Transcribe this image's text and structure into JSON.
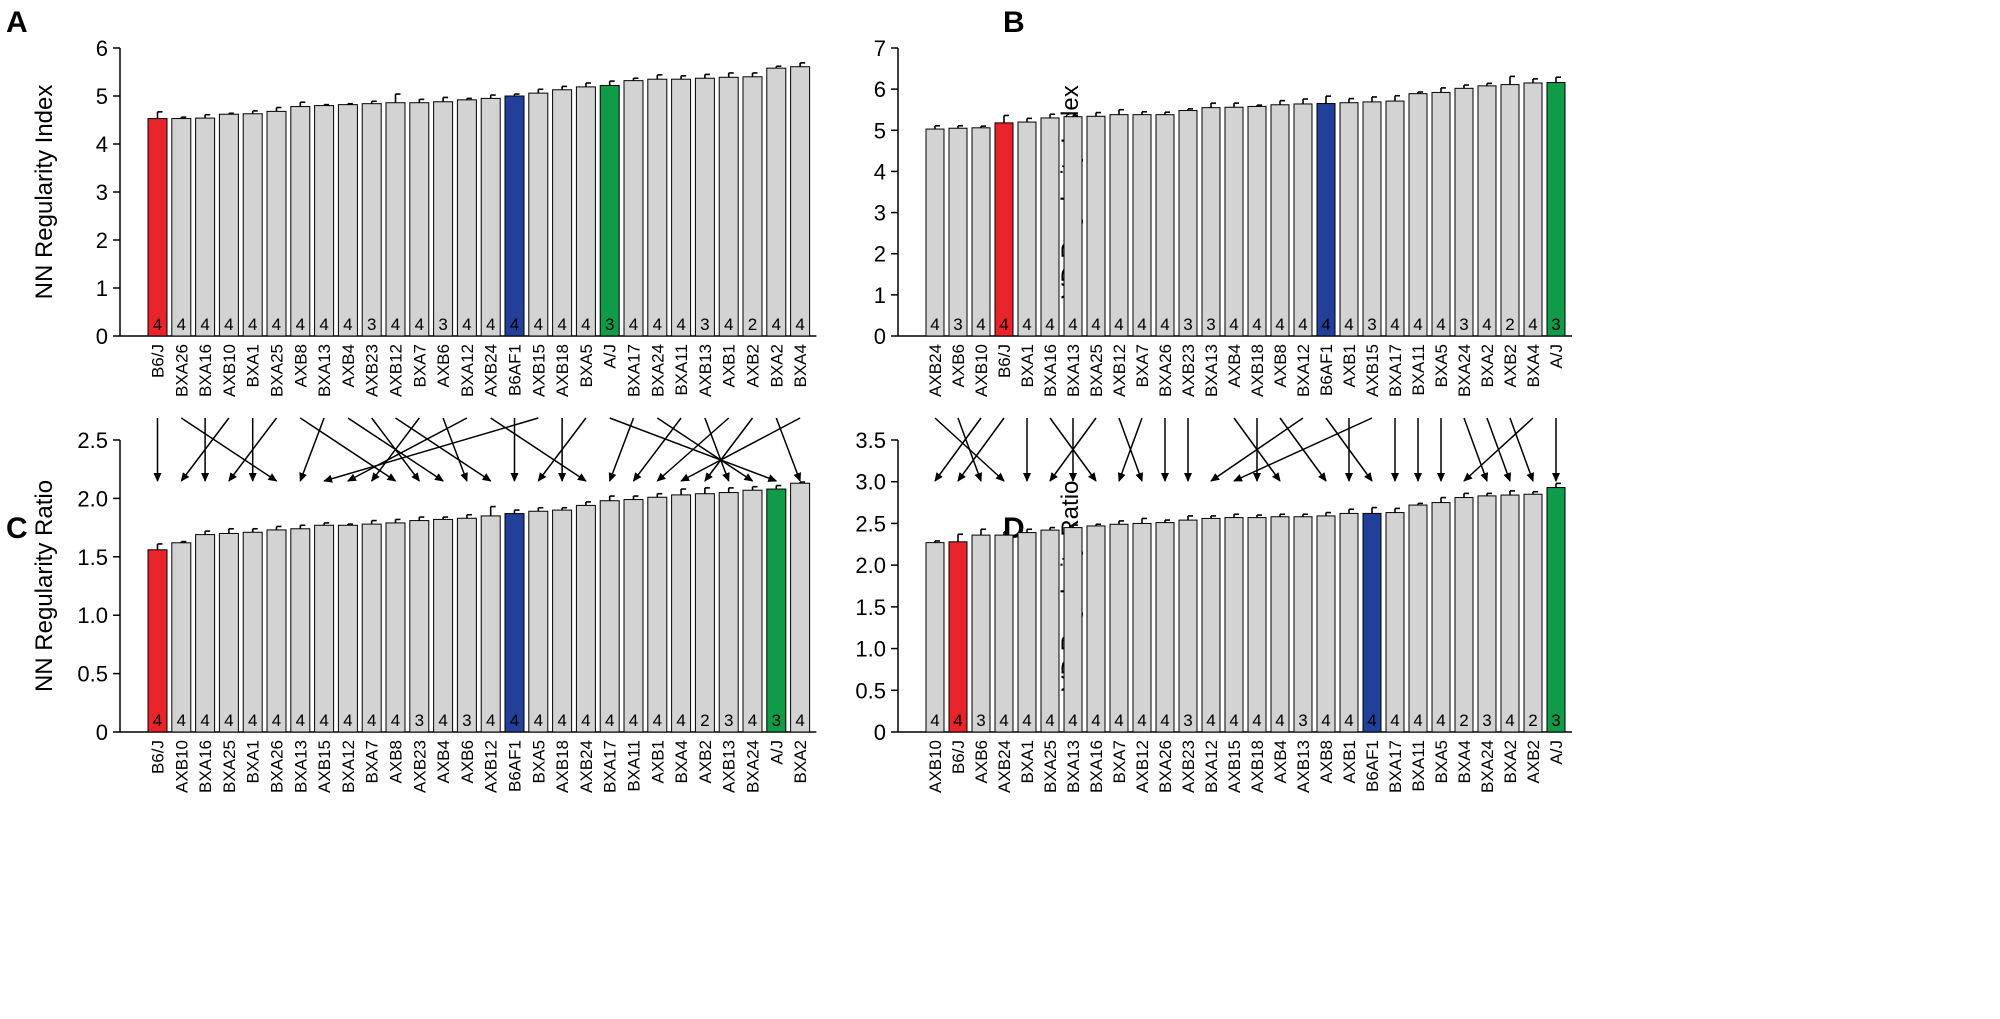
{
  "colors": {
    "default": "#d3d3d3",
    "B6/J": "#e8232a",
    "B6AF1": "#22409a",
    "A/J": "#0f9b47"
  },
  "chart_data": [
    {
      "panel": "A",
      "type": "bar",
      "ylabel": "NN Regularity Index",
      "ylim": [
        0,
        6
      ],
      "yticks": [
        0,
        1,
        2,
        3,
        4,
        5,
        6
      ],
      "categories": [
        "B6/J",
        "BXA26",
        "BXA16",
        "AXB10",
        "BXA1",
        "BXA25",
        "AXB8",
        "BXA13",
        "AXB4",
        "AXB23",
        "AXB12",
        "BXA7",
        "AXB6",
        "BXA12",
        "AXB24",
        "B6AF1",
        "AXB15",
        "AXB18",
        "BXA5",
        "A/J",
        "BXA17",
        "BXA24",
        "BXA11",
        "AXB13",
        "AXB1",
        "AXB2",
        "BXA2",
        "BXA4"
      ],
      "values": [
        4.53,
        4.53,
        4.54,
        4.62,
        4.63,
        4.68,
        4.78,
        4.8,
        4.82,
        4.84,
        4.86,
        4.86,
        4.88,
        4.92,
        4.95,
        5.0,
        5.06,
        5.13,
        5.19,
        5.22,
        5.32,
        5.35,
        5.35,
        5.37,
        5.39,
        5.4,
        5.58,
        5.61
      ],
      "errors": [
        0.14,
        0.03,
        0.07,
        0.02,
        0.06,
        0.08,
        0.09,
        0.02,
        0.02,
        0.05,
        0.18,
        0.07,
        0.09,
        0.03,
        0.07,
        0.04,
        0.08,
        0.07,
        0.08,
        0.09,
        0.05,
        0.09,
        0.07,
        0.08,
        0.09,
        0.08,
        0.04,
        0.08
      ],
      "n": [
        4,
        4,
        4,
        4,
        4,
        4,
        4,
        4,
        4,
        3,
        4,
        4,
        3,
        4,
        4,
        4,
        4,
        4,
        4,
        3,
        4,
        4,
        4,
        3,
        4,
        2,
        4,
        4
      ]
    },
    {
      "panel": "B",
      "type": "bar",
      "ylabel": "VD Regularity Index",
      "ylim": [
        0,
        7
      ],
      "yticks": [
        0,
        1,
        2,
        3,
        4,
        5,
        6,
        7
      ],
      "categories": [
        "AXB24",
        "AXB6",
        "AXB10",
        "B6/J",
        "BXA1",
        "BXA16",
        "BXA13",
        "BXA25",
        "AXB12",
        "BXA7",
        "BXA26",
        "AXB23",
        "BXA13",
        "AXB4",
        "AXB18",
        "AXB8",
        "BXA12",
        "B6AF1",
        "AXB1",
        "AXB15",
        "BXA17",
        "BXA11",
        "BXA5",
        "BXA24",
        "BXA2",
        "AXB2",
        "BXA4",
        "A/J"
      ],
      "values": [
        5.03,
        5.05,
        5.06,
        5.18,
        5.2,
        5.3,
        5.33,
        5.34,
        5.38,
        5.38,
        5.38,
        5.48,
        5.55,
        5.56,
        5.58,
        5.62,
        5.64,
        5.65,
        5.67,
        5.69,
        5.71,
        5.89,
        5.92,
        6.02,
        6.08,
        6.11,
        6.15,
        6.16
      ],
      "errors": [
        0.08,
        0.06,
        0.04,
        0.18,
        0.09,
        0.09,
        0.03,
        0.09,
        0.12,
        0.07,
        0.06,
        0.04,
        0.11,
        0.1,
        0.03,
        0.1,
        0.12,
        0.18,
        0.1,
        0.12,
        0.13,
        0.04,
        0.11,
        0.08,
        0.06,
        0.2,
        0.1,
        0.13
      ],
      "n": [
        4,
        3,
        4,
        4,
        4,
        4,
        4,
        4,
        4,
        4,
        4,
        3,
        3,
        4,
        4,
        4,
        4,
        4,
        4,
        3,
        4,
        4,
        4,
        3,
        4,
        2,
        4,
        3
      ]
    },
    {
      "panel": "C",
      "type": "bar",
      "ylabel": "NN Regularity Ratio",
      "ylim": [
        0,
        2.5
      ],
      "yticks": [
        0,
        0.5,
        1.0,
        1.5,
        2.0,
        2.5
      ],
      "ytick_labels": [
        "0",
        "0.5",
        "1.0",
        "1.5",
        "2.0",
        "2.5"
      ],
      "categories": [
        "B6/J",
        "AXB10",
        "BXA16",
        "BXA25",
        "BXA1",
        "BXA26",
        "BXA13",
        "AXB15",
        "BXA12",
        "BXA7",
        "AXB8",
        "AXB23",
        "AXB4",
        "AXB6",
        "AXB12",
        "B6AF1",
        "BXA5",
        "AXB18",
        "AXB24",
        "BXA17",
        "BXA11",
        "AXB1",
        "BXA4",
        "AXB2",
        "AXB13",
        "BXA24",
        "A/J",
        "BXA2"
      ],
      "values": [
        1.56,
        1.62,
        1.69,
        1.7,
        1.71,
        1.73,
        1.74,
        1.77,
        1.77,
        1.78,
        1.79,
        1.81,
        1.82,
        1.83,
        1.85,
        1.87,
        1.89,
        1.9,
        1.94,
        1.98,
        1.99,
        2.01,
        2.03,
        2.04,
        2.05,
        2.07,
        2.08,
        2.13
      ],
      "errors": [
        0.05,
        0.01,
        0.03,
        0.04,
        0.03,
        0.03,
        0.03,
        0.02,
        0.01,
        0.03,
        0.03,
        0.03,
        0.02,
        0.03,
        0.08,
        0.03,
        0.03,
        0.02,
        0.03,
        0.04,
        0.03,
        0.03,
        0.05,
        0.05,
        0.04,
        0.03,
        0.03,
        0.01
      ],
      "n": [
        4,
        4,
        4,
        4,
        4,
        4,
        4,
        4,
        4,
        4,
        4,
        3,
        4,
        3,
        4,
        4,
        4,
        4,
        4,
        4,
        4,
        4,
        4,
        2,
        3,
        4,
        3,
        4
      ]
    },
    {
      "panel": "D",
      "type": "bar",
      "ylabel": "VD Regularity Ratio",
      "ylim": [
        0,
        3.5
      ],
      "yticks": [
        0,
        0.5,
        1.0,
        1.5,
        2.0,
        2.5,
        3.0,
        3.5
      ],
      "ytick_labels": [
        "0",
        "0.5",
        "1.0",
        "1.5",
        "2.0",
        "2.5",
        "3.0",
        "3.5"
      ],
      "categories": [
        "AXB10",
        "B6/J",
        "AXB6",
        "AXB24",
        "BXA1",
        "BXA25",
        "BXA13",
        "BXA16",
        "BXA7",
        "AXB12",
        "BXA26",
        "AXB23",
        "BXA12",
        "AXB15",
        "AXB18",
        "AXB4",
        "AXB13",
        "AXB8",
        "AXB1",
        "B6AF1",
        "BXA17",
        "BXA11",
        "BXA5",
        "BXA4",
        "BXA24",
        "BXA2",
        "AXB2",
        "A/J"
      ],
      "values": [
        2.27,
        2.28,
        2.36,
        2.36,
        2.39,
        2.42,
        2.45,
        2.47,
        2.49,
        2.5,
        2.51,
        2.54,
        2.56,
        2.57,
        2.57,
        2.58,
        2.58,
        2.59,
        2.62,
        2.62,
        2.63,
        2.72,
        2.75,
        2.81,
        2.83,
        2.84,
        2.85,
        2.93
      ],
      "errors": [
        0.02,
        0.09,
        0.07,
        0.04,
        0.04,
        0.03,
        0.03,
        0.02,
        0.04,
        0.06,
        0.03,
        0.05,
        0.03,
        0.04,
        0.03,
        0.03,
        0.03,
        0.04,
        0.05,
        0.07,
        0.05,
        0.02,
        0.06,
        0.05,
        0.03,
        0.05,
        0.03,
        0.05
      ],
      "n": [
        4,
        4,
        3,
        4,
        4,
        4,
        4,
        4,
        4,
        4,
        4,
        3,
        4,
        4,
        4,
        4,
        3,
        4,
        4,
        4,
        4,
        4,
        4,
        2,
        3,
        4,
        2,
        3
      ]
    }
  ],
  "panel_letters": {
    "A": "A",
    "B": "B",
    "C": "C",
    "D": "D"
  }
}
